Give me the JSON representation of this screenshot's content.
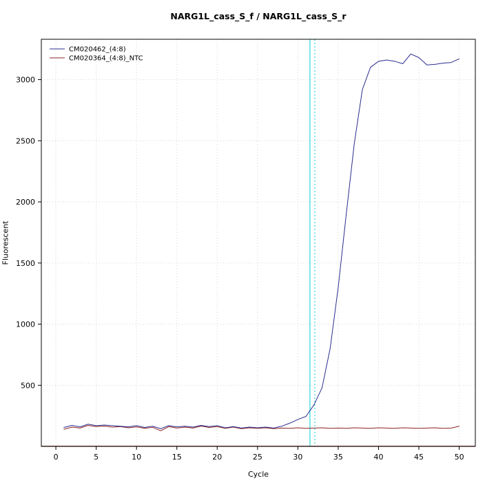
{
  "chart_data": {
    "type": "line",
    "title": "NARG1L_cass_S_f / NARG1L_cass_S_r",
    "xlabel": "Cycle",
    "ylabel": "Fluorescent",
    "xlim": [
      -1.8,
      52
    ],
    "ylim": [
      0,
      3330
    ],
    "xticks": [
      0,
      5,
      10,
      15,
      20,
      25,
      30,
      35,
      40,
      45,
      50
    ],
    "yticks": [
      500,
      1000,
      1500,
      2000,
      2500,
      3000
    ],
    "grid": true,
    "grid_color": "#d4d4d4",
    "legend_position": "top-left",
    "x": [
      1,
      2,
      3,
      4,
      5,
      6,
      7,
      8,
      9,
      10,
      11,
      12,
      13,
      14,
      15,
      16,
      17,
      18,
      19,
      20,
      21,
      22,
      23,
      24,
      25,
      26,
      27,
      28,
      29,
      30,
      31,
      32,
      33,
      34,
      35,
      36,
      37,
      38,
      39,
      40,
      41,
      42,
      43,
      44,
      45,
      46,
      47,
      48,
      49,
      50
    ],
    "series": [
      {
        "name": "CM020364_(4:8)_NTC",
        "color": "#8b2323",
        "values": [
          140,
          158,
          150,
          172,
          162,
          166,
          158,
          162,
          152,
          160,
          148,
          156,
          128,
          162,
          150,
          158,
          150,
          166,
          155,
          162,
          148,
          158,
          145,
          152,
          148,
          152,
          145,
          150,
          148,
          152,
          148,
          150,
          152,
          148,
          150,
          148,
          152,
          150,
          148,
          152,
          150,
          148,
          152,
          150,
          148,
          150,
          152,
          148,
          150,
          165
        ]
      },
      {
        "name": "CM020462_(4:8)",
        "color": "#2b2b8f",
        "values": [
          155,
          172,
          160,
          182,
          170,
          175,
          170,
          165,
          160,
          170,
          155,
          165,
          145,
          170,
          160,
          165,
          158,
          172,
          162,
          170,
          152,
          162,
          150,
          158,
          152,
          158,
          150,
          165,
          190,
          220,
          245,
          340,
          480,
          800,
          1300,
          1900,
          2480,
          2920,
          3100,
          3150,
          3160,
          3150,
          3130,
          3210,
          3180,
          3120,
          3125,
          3135,
          3140,
          3170
        ]
      }
    ],
    "vlines": [
      {
        "x": 31.5,
        "color": "#00cdcd",
        "style": "solid"
      },
      {
        "x": 32.1,
        "color": "#00cdcd",
        "style": "dotted"
      }
    ],
    "hlines": [
      {
        "y": 2,
        "color": "#8b2323",
        "style": "solid"
      }
    ]
  }
}
